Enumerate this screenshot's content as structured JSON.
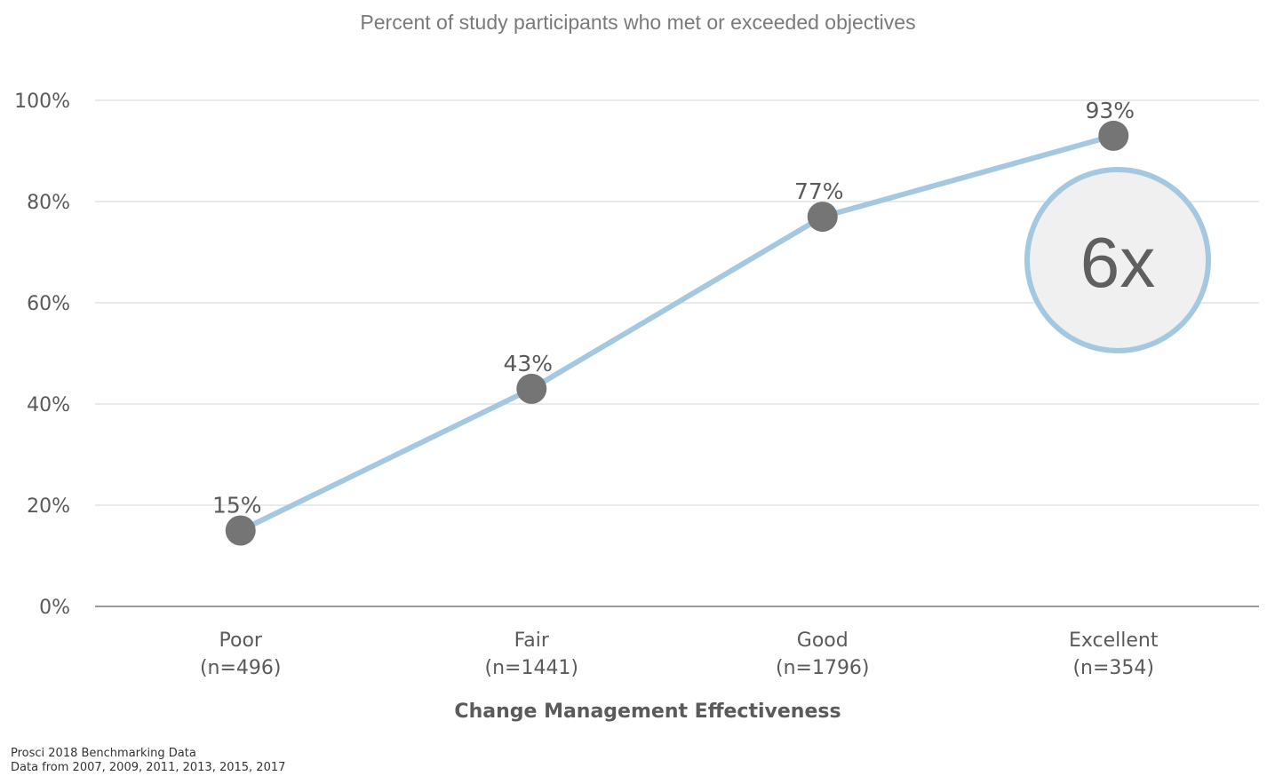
{
  "chart_data": {
    "type": "line",
    "title": "Percent of study participants who met or exceeded objectives",
    "xlabel": "Change Management Effectiveness",
    "ylabel": "",
    "ylim": [
      0,
      100
    ],
    "yticks": [
      "0%",
      "20%",
      "40%",
      "60%",
      "80%",
      "100%"
    ],
    "grid": true,
    "categories": [
      {
        "name": "Poor",
        "n": "(n=496)"
      },
      {
        "name": "Fair",
        "n": "(n=1441)"
      },
      {
        "name": "Good",
        "n": "(n=1796)"
      },
      {
        "name": "Excellent",
        "n": "(n=354)"
      }
    ],
    "values": [
      15,
      43,
      77,
      93
    ],
    "data_labels": [
      "15%",
      "43%",
      "77%",
      "93%"
    ],
    "annotation": "6x",
    "colors": {
      "line": "#a5c8e1",
      "marker": "#757575",
      "grid": "#e3e3e3",
      "axis": "#9a9a9a",
      "callout_fill": "#f0f0f0",
      "callout_border": "#a5c8e1"
    }
  },
  "footnotes": [
    "Prosci 2018 Benchmarking Data",
    "Data from 2007, 2009, 2011, 2013, 2015,  2017"
  ]
}
